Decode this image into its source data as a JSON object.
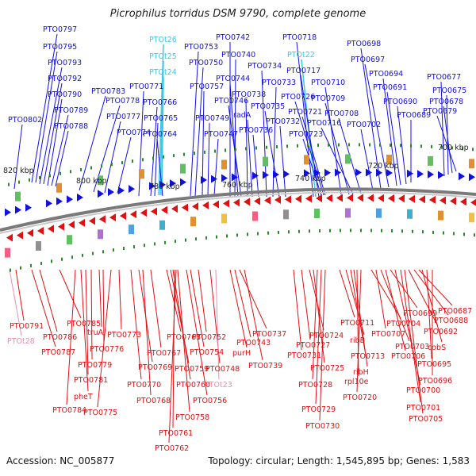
{
  "title": "Picrophilus torridus DSM 9790, complete genome",
  "footer": {
    "accession": "Accession: NC_005877",
    "summary": "Topology: circular; Length: 1,545,895 bp; Genes: 1,583"
  },
  "colors": {
    "plus_strand": "#1010e0",
    "minus_strand": "#e01010",
    "trna": "#3cc8e8",
    "trna_minus": "#e890b0",
    "backbone": "#808080"
  },
  "scale": {
    "ticks": [
      "820 kbp",
      "800 kbp",
      "780 kbp",
      "760 kbp",
      "740 kbp",
      "720 kbp",
      "700 kbp"
    ]
  },
  "top_labels": [
    "PTO0797",
    "PTO0795",
    "PTO0793",
    "PTO0792",
    "PTO0790",
    "PTO0789",
    "PTO0788",
    "PTO0802",
    "PTO0783",
    "PTO0778",
    "PTO0777",
    "PTO0774",
    "PTOt26",
    "PTOt25",
    "PTOt24",
    "PTO0771",
    "PTO0766",
    "PTO0765",
    "PTO0764",
    "PTO0753",
    "PTO0750",
    "PTO0757",
    "PTO0749",
    "PTO0747",
    "PTO0742",
    "PTO0740",
    "PTO0744",
    "PTO0746",
    "PTO0738",
    "radA",
    "PTO0736",
    "PTO0734",
    "PTO0733",
    "PTO0735",
    "PTO0732",
    "PTO0718",
    "PTOt22",
    "PTO0717",
    "PTO0726",
    "PTO0721",
    "PTO0723",
    "PTO0710",
    "PTO0709",
    "PTO0716",
    "PTO0708",
    "PTO0698",
    "PTO0697",
    "PTO0694",
    "PTO0691",
    "PTO0702",
    "PTO0690",
    "PTO0689",
    "PTO0677",
    "PTO0675",
    "PTO0678",
    "PTO0679"
  ],
  "bottom_labels": [
    "PTO0791",
    "PTOt28",
    "PTO0786",
    "PTO0787",
    "PTO0785",
    "PTO0784",
    "pheT",
    "PTO0781",
    "PTO0779",
    "truA",
    "PTO0776",
    "PTO0775",
    "PTO0773",
    "PTO0770",
    "PTO0769",
    "PTO0768",
    "PTO0767",
    "PTO0763",
    "PTO0759",
    "PTO0760",
    "PTO0761",
    "PTO0762",
    "PTO0758",
    "PTO0756",
    "PTO0754",
    "PTO0752",
    "PTO0748",
    "PTOt23",
    "purH",
    "PTO0743",
    "PTO0737",
    "PTO0739",
    "PTO0731",
    "PTO0727",
    "PTO0724",
    "PTO0725",
    "PTO0728",
    "PTO0729",
    "PTO0730",
    "PTO0711",
    "ribB",
    "PTO0713",
    "ribH",
    "rpl10e",
    "PTO0720",
    "PTO0704",
    "PTO0707",
    "PTO0703",
    "PTO0706",
    "PTO0699",
    "PTO0700",
    "PTO0701",
    "PTO0705",
    "PTO0692",
    "PTO0688",
    "PTO0687",
    "cobS",
    "PTO0695",
    "PTO0696"
  ]
}
